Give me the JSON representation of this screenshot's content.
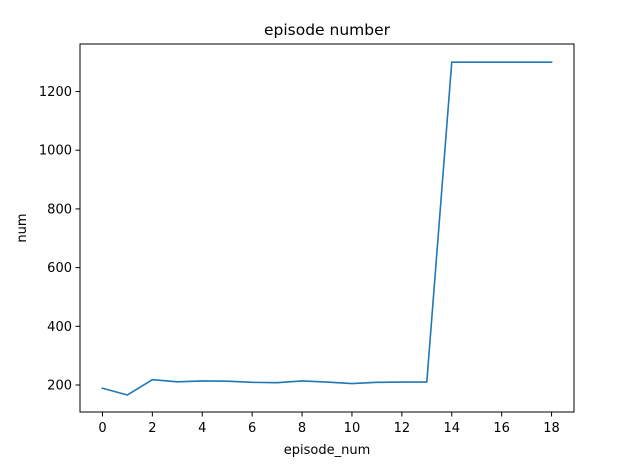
{
  "chart_data": {
    "type": "line",
    "title": "episode number",
    "xlabel": "episode_num",
    "ylabel": "num",
    "xlim": [
      -0.9,
      18.9
    ],
    "ylim": [
      108,
      1362
    ],
    "xticks": [
      0,
      2,
      4,
      6,
      8,
      10,
      12,
      14,
      16,
      18
    ],
    "xtick_labels": [
      "0",
      "2",
      "4",
      "6",
      "8",
      "10",
      "12",
      "14",
      "16",
      "18"
    ],
    "yticks": [
      200,
      400,
      600,
      800,
      1000,
      1200
    ],
    "ytick_labels": [
      "200",
      "400",
      "600",
      "800",
      "1000",
      "1200"
    ],
    "grid": false,
    "legend": null,
    "series": [
      {
        "color": "#1f77b4",
        "x": [
          0,
          1,
          2,
          3,
          4,
          5,
          6,
          7,
          8,
          9,
          10,
          11,
          12,
          13,
          14,
          15,
          16,
          17,
          18
        ],
        "y": [
          189,
          166,
          218,
          211,
          214,
          213,
          209,
          208,
          214,
          210,
          205,
          209,
          210,
          210,
          1300,
          1300,
          1300,
          1300,
          1300
        ]
      }
    ]
  }
}
